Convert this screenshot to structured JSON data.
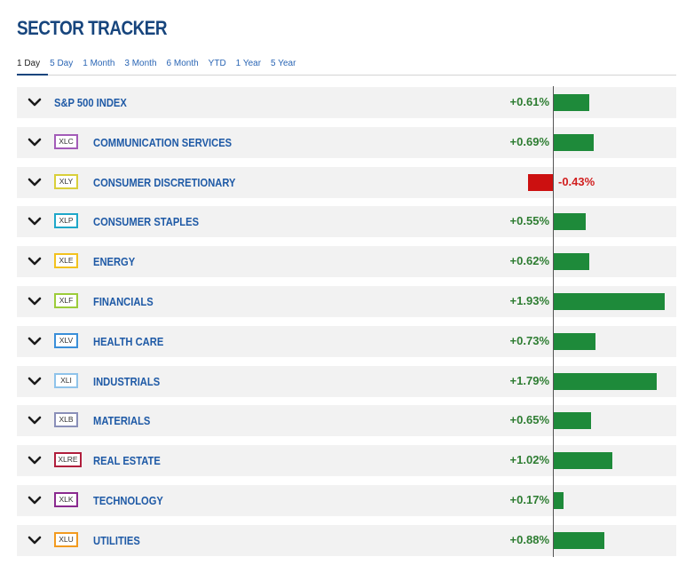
{
  "title": "SECTOR TRACKER",
  "tabs": [
    {
      "label": "1 Day",
      "active": true
    },
    {
      "label": "5 Day",
      "active": false
    },
    {
      "label": "1 Month",
      "active": false
    },
    {
      "label": "3 Month",
      "active": false
    },
    {
      "label": "6 Month",
      "active": false
    },
    {
      "label": "YTD",
      "active": false
    },
    {
      "label": "1 Year",
      "active": false
    },
    {
      "label": "5 Year",
      "active": false
    }
  ],
  "colors": {
    "positive": "#1e8a3a",
    "negative": "#cc1010"
  },
  "rows": [
    {
      "ticker": "",
      "name": "S&P 500 INDEX",
      "change": 0.61,
      "change_label": "+0.61%",
      "badge_color": ""
    },
    {
      "ticker": "XLC",
      "name": "COMMUNICATION SERVICES",
      "change": 0.69,
      "change_label": "+0.69%",
      "badge_color": "#a35cb8"
    },
    {
      "ticker": "XLY",
      "name": "CONSUMER DISCRETIONARY",
      "change": -0.43,
      "change_label": "-0.43%",
      "badge_color": "#d9cf3a"
    },
    {
      "ticker": "XLP",
      "name": "CONSUMER STAPLES",
      "change": 0.55,
      "change_label": "+0.55%",
      "badge_color": "#1fa7c9"
    },
    {
      "ticker": "XLE",
      "name": "ENERGY",
      "change": 0.62,
      "change_label": "+0.62%",
      "badge_color": "#f2c21f"
    },
    {
      "ticker": "XLF",
      "name": "FINANCIALS",
      "change": 1.93,
      "change_label": "+1.93%",
      "badge_color": "#9ccc3a"
    },
    {
      "ticker": "XLV",
      "name": "HEALTH CARE",
      "change": 0.73,
      "change_label": "+0.73%",
      "badge_color": "#3a8fd9"
    },
    {
      "ticker": "XLI",
      "name": "INDUSTRIALS",
      "change": 1.79,
      "change_label": "+1.79%",
      "badge_color": "#8fc3ea"
    },
    {
      "ticker": "XLB",
      "name": "MATERIALS",
      "change": 0.65,
      "change_label": "+0.65%",
      "badge_color": "#8a8fb8"
    },
    {
      "ticker": "XLRE",
      "name": "REAL ESTATE",
      "change": 1.02,
      "change_label": "+1.02%",
      "badge_color": "#b01e3c"
    },
    {
      "ticker": "XLK",
      "name": "TECHNOLOGY",
      "change": 0.17,
      "change_label": "+0.17%",
      "badge_color": "#8a2a8f"
    },
    {
      "ticker": "XLU",
      "name": "UTILITIES",
      "change": 0.88,
      "change_label": "+0.88%",
      "badge_color": "#f29a1f"
    }
  ]
}
